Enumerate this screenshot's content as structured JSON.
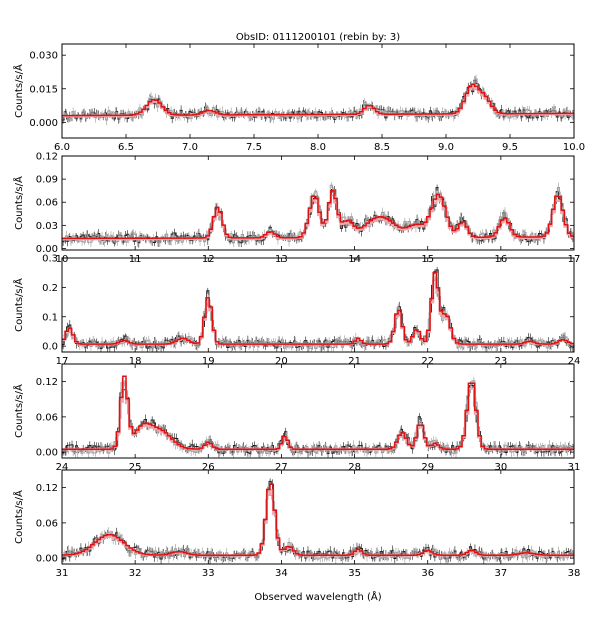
{
  "figure": {
    "title": "ObsID: 0111200101 (rebin by: 3)",
    "xlabel": "Observed wavelength (Å)"
  },
  "colors": {
    "data_dark": "#1a1a1a",
    "data_grey": "#9a9a9a",
    "model_red": "#dd1111",
    "model_pink": "#f2a6ae"
  },
  "chart_data": [
    {
      "type": "line",
      "ylabel": "Counts/s/Å",
      "xlim": [
        6,
        10
      ],
      "ylim": [
        -0.007,
        0.035
      ],
      "xticks": [
        "6.0",
        "6.5",
        "7.0",
        "7.5",
        "8.0",
        "8.5",
        "9.0",
        "9.5",
        "10.0"
      ],
      "yticks": [
        "0.000",
        "0.015",
        "0.030"
      ],
      "continuum": 0.003,
      "lines": [
        [
          6.72,
          0.007,
          0.06
        ],
        [
          7.15,
          0.002,
          0.05
        ],
        [
          8.4,
          0.004,
          0.04
        ],
        [
          9.2,
          0.012,
          0.05
        ],
        [
          9.3,
          0.007,
          0.05
        ]
      ],
      "slope": 0.001
    },
    {
      "type": "line",
      "ylabel": "Counts/s/Å",
      "xlim": [
        10,
        17
      ],
      "ylim": [
        -0.002,
        0.12
      ],
      "xticks": [
        "10",
        "11",
        "12",
        "13",
        "14",
        "15",
        "16",
        "17"
      ],
      "yticks": [
        "0.00",
        "0.03",
        "0.06",
        "0.09",
        "0.12"
      ],
      "continuum": 0.013,
      "lines": [
        [
          12.13,
          0.04,
          0.06
        ],
        [
          12.85,
          0.008,
          0.06
        ],
        [
          13.45,
          0.055,
          0.07
        ],
        [
          13.7,
          0.06,
          0.06
        ],
        [
          13.9,
          0.02,
          0.08
        ],
        [
          14.35,
          0.027,
          0.2
        ],
        [
          14.85,
          0.015,
          0.12
        ],
        [
          15.15,
          0.055,
          0.1
        ],
        [
          15.48,
          0.02,
          0.06
        ],
        [
          16.05,
          0.025,
          0.07
        ],
        [
          16.78,
          0.055,
          0.07
        ]
      ],
      "slope": 0.002
    },
    {
      "type": "line",
      "ylabel": "Counts/s/Å",
      "xlim": [
        17,
        24
      ],
      "ylim": [
        -0.02,
        0.3
      ],
      "xticks": [
        "17",
        "18",
        "19",
        "20",
        "21",
        "22",
        "23",
        "24"
      ],
      "yticks": [
        "0.0",
        "0.1",
        "0.2",
        "0.3"
      ],
      "continuum": 0.007,
      "lines": [
        [
          17.1,
          0.055,
          0.05
        ],
        [
          17.85,
          0.012,
          0.06
        ],
        [
          18.65,
          0.02,
          0.08
        ],
        [
          19.0,
          0.16,
          0.05
        ],
        [
          21.05,
          0.02,
          0.04
        ],
        [
          21.6,
          0.12,
          0.05
        ],
        [
          21.85,
          0.05,
          0.05
        ],
        [
          22.1,
          0.24,
          0.05
        ],
        [
          22.25,
          0.1,
          0.06
        ],
        [
          23.4,
          0.01,
          0.06
        ],
        [
          23.85,
          0.015,
          0.06
        ]
      ],
      "slope": 0.0
    },
    {
      "type": "line",
      "ylabel": "Counts/s/Å",
      "xlim": [
        24,
        31
      ],
      "ylim": [
        -0.01,
        0.15
      ],
      "xticks": [
        "24",
        "25",
        "26",
        "27",
        "28",
        "29",
        "30",
        "31"
      ],
      "yticks": [
        "0.00",
        "0.06",
        "0.12"
      ],
      "continuum": 0.005,
      "lines": [
        [
          24.85,
          0.12,
          0.05
        ],
        [
          25.1,
          0.035,
          0.12
        ],
        [
          25.35,
          0.03,
          0.15
        ],
        [
          26.0,
          0.012,
          0.05
        ],
        [
          27.05,
          0.022,
          0.04
        ],
        [
          28.65,
          0.028,
          0.06
        ],
        [
          28.9,
          0.045,
          0.05
        ],
        [
          29.1,
          0.01,
          0.05
        ],
        [
          29.6,
          0.12,
          0.06
        ]
      ],
      "slope": 0.0
    },
    {
      "type": "line",
      "ylabel": "Counts/s/Å",
      "xlim": [
        31,
        38
      ],
      "ylim": [
        -0.01,
        0.15
      ],
      "xticks": [
        "31",
        "32",
        "33",
        "34",
        "35",
        "36",
        "37",
        "38"
      ],
      "yticks": [
        "0.00",
        "0.06",
        "0.12"
      ],
      "continuum": 0.005,
      "lines": [
        [
          31.65,
          0.035,
          0.2
        ],
        [
          32.6,
          0.006,
          0.1
        ],
        [
          33.85,
          0.125,
          0.06
        ],
        [
          34.1,
          0.015,
          0.06
        ],
        [
          35.05,
          0.01,
          0.05
        ],
        [
          36.0,
          0.008,
          0.06
        ],
        [
          36.6,
          0.008,
          0.06
        ],
        [
          37.35,
          0.004,
          0.1
        ]
      ],
      "slope": 0.0
    }
  ]
}
